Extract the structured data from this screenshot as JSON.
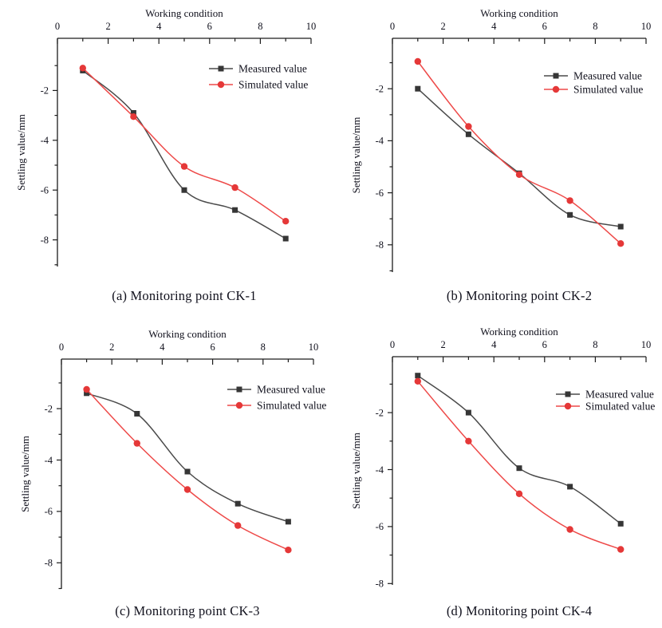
{
  "figure": {
    "background": "#ffffff",
    "description": "Comparison of measured and simulated settlement values at four monitoring points"
  },
  "palette": {
    "axis": "#1c1c1c",
    "text": "#10101c",
    "measured_line": "#4a4a4a",
    "measured_marker": "#363636",
    "simulated_line": "#ee4948",
    "simulated_marker": "#e53838"
  },
  "chart_data": [
    {
      "type": "line",
      "caption": "(a) Monitoring point CK-1",
      "x_title": "Working condition",
      "y_title": "Settling value/mm",
      "xlim": [
        0,
        10
      ],
      "ylim": [
        0,
        -9
      ],
      "x_ticks": [
        0,
        2,
        4,
        6,
        8,
        10
      ],
      "y_ticks": [
        -2,
        -4,
        -6,
        -8
      ],
      "grid": false,
      "legend_position": "top-right",
      "x": [
        1,
        3,
        5,
        7,
        9
      ],
      "series": [
        {
          "name": "Measured value",
          "marker": "square",
          "values": [
            -1.2,
            -2.9,
            -6.0,
            -6.8,
            -7.95
          ]
        },
        {
          "name": "Simulated value",
          "marker": "circle",
          "values": [
            -1.1,
            -3.05,
            -5.05,
            -5.9,
            -7.25
          ]
        }
      ]
    },
    {
      "type": "line",
      "caption": "(b) Monitoring point CK-2",
      "x_title": "Working condition",
      "y_title": "Settling value/mm",
      "xlim": [
        0,
        10
      ],
      "ylim": [
        0,
        -9
      ],
      "x_ticks": [
        0,
        2,
        4,
        6,
        8,
        10
      ],
      "y_ticks": [
        -2,
        -4,
        -6,
        -8
      ],
      "grid": false,
      "legend_position": "top-right",
      "x": [
        1,
        3,
        5,
        7,
        9
      ],
      "series": [
        {
          "name": "Measured value",
          "marker": "square",
          "values": [
            -2.0,
            -3.75,
            -5.25,
            -6.85,
            -7.3
          ]
        },
        {
          "name": "Simulated value",
          "marker": "circle",
          "values": [
            -0.95,
            -3.45,
            -5.3,
            -6.3,
            -7.95
          ]
        }
      ]
    },
    {
      "type": "line",
      "caption": "(c) Monitoring point CK-3",
      "x_title": "Working condition",
      "y_title": "Settling value/mm",
      "xlim": [
        0,
        10
      ],
      "ylim": [
        0,
        -9
      ],
      "x_ticks": [
        0,
        2,
        4,
        6,
        8,
        10
      ],
      "y_ticks": [
        -2,
        -4,
        -6,
        -8
      ],
      "grid": false,
      "legend_position": "top-right",
      "x": [
        1,
        3,
        5,
        7,
        9
      ],
      "series": [
        {
          "name": "Measured value",
          "marker": "square",
          "values": [
            -1.4,
            -2.2,
            -4.45,
            -5.7,
            -6.4
          ]
        },
        {
          "name": "Simulated value",
          "marker": "circle",
          "values": [
            -1.25,
            -3.35,
            -5.15,
            -6.55,
            -7.5
          ]
        }
      ]
    },
    {
      "type": "line",
      "caption": "(d) Monitoring point CK-4",
      "x_title": "Working condition",
      "y_title": "Settling value/mm",
      "xlim": [
        0,
        10
      ],
      "ylim": [
        0,
        -8
      ],
      "x_ticks": [
        0,
        2,
        4,
        6,
        8,
        10
      ],
      "y_ticks": [
        -2,
        -4,
        -6,
        -8
      ],
      "grid": false,
      "legend_position": "top-right",
      "x": [
        1,
        3,
        5,
        7,
        9
      ],
      "series": [
        {
          "name": "Measured value",
          "marker": "square",
          "values": [
            -0.7,
            -2.0,
            -3.95,
            -4.6,
            -5.9
          ]
        },
        {
          "name": "Simulated value",
          "marker": "circle",
          "values": [
            -0.9,
            -3.0,
            -4.85,
            -6.1,
            -6.8
          ]
        }
      ]
    }
  ]
}
